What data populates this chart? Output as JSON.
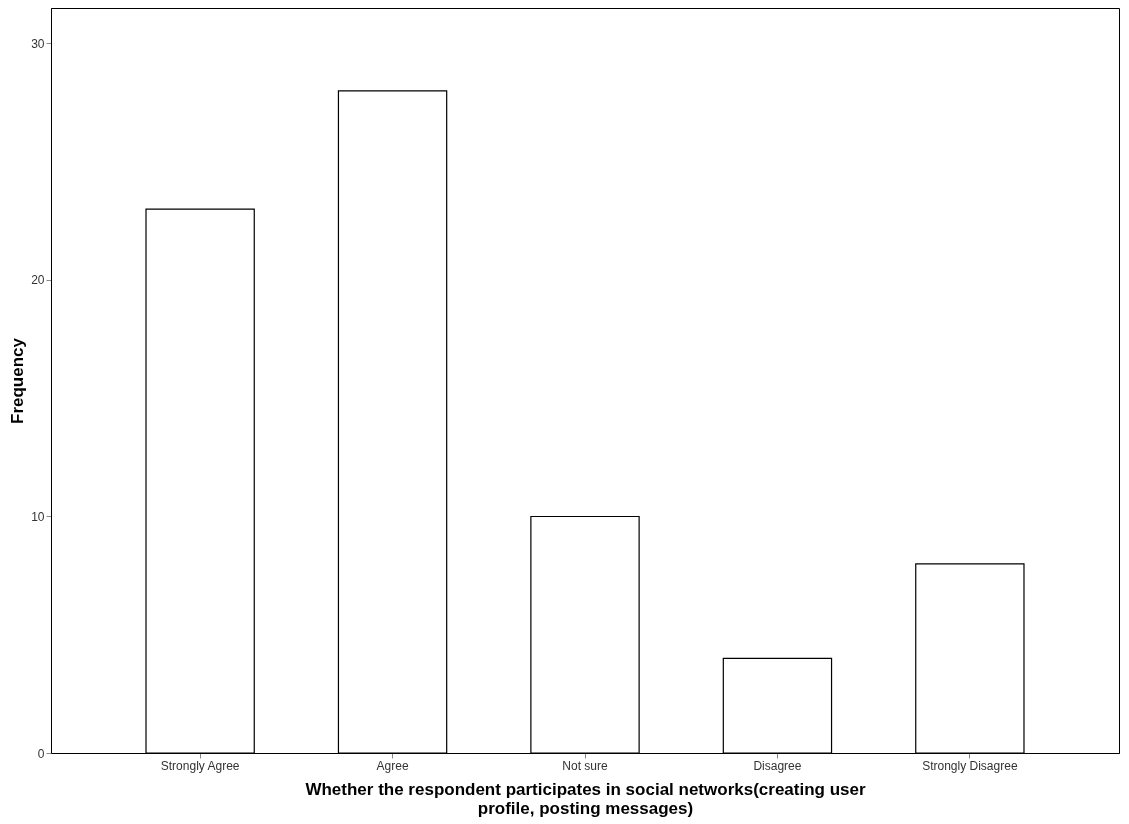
{
  "chart_data": {
    "type": "bar",
    "xlabel": "Whether the respondent participates in social networks(creating user profile, posting messages)",
    "ylabel": "Frequency",
    "categories": [
      "Strongly Agree",
      "Agree",
      "Not sure",
      "Disagree",
      "Strongly Disagree"
    ],
    "values": [
      23,
      28,
      10,
      4,
      8
    ],
    "color": "#ffffff",
    "ylim": [
      0,
      31.5
    ],
    "yticks": [
      0,
      10,
      20,
      30
    ],
    "grid": false
  }
}
